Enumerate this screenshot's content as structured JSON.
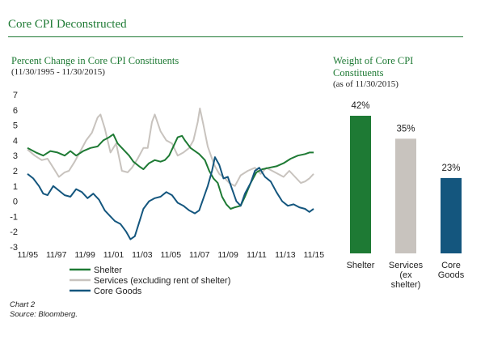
{
  "title": "Core CPI Deconstructed",
  "footer": {
    "chart_no": "Chart 2",
    "source": "Source: Bloomberg."
  },
  "colors": {
    "brand": "#1e7a34",
    "shelter": "#1e7a34",
    "services": "#c8c3be",
    "goods": "#14567e"
  },
  "chart_data": [
    {
      "type": "line",
      "title": "Percent Change in Core CPI Constituents",
      "subtitle": "(11/30/1995 - 11/30/2015)",
      "ylim": [
        -3,
        7
      ],
      "yticks": [
        -3,
        -2,
        -1,
        0,
        1,
        2,
        3,
        4,
        5,
        6,
        7
      ],
      "xlim": [
        1995.9,
        2015.9
      ],
      "xticks": [
        {
          "x": 1995.917,
          "label": "11/95"
        },
        {
          "x": 1997.917,
          "label": "11/97"
        },
        {
          "x": 1999.917,
          "label": "11/99"
        },
        {
          "x": 2001.917,
          "label": "11/01"
        },
        {
          "x": 2003.917,
          "label": "11/03"
        },
        {
          "x": 2005.917,
          "label": "11/05"
        },
        {
          "x": 2007.917,
          "label": "11/07"
        },
        {
          "x": 2009.917,
          "label": "11/09"
        },
        {
          "x": 2011.917,
          "label": "11/11"
        },
        {
          "x": 2013.917,
          "label": "11/13"
        },
        {
          "x": 2015.917,
          "label": "11/15"
        }
      ],
      "legend_position": "bottom-left",
      "series": [
        {
          "name": "Shelter",
          "color": "#1e7a34",
          "points": [
            [
              1995.9,
              3.5
            ],
            [
              1996.5,
              3.2
            ],
            [
              1997.0,
              3.0
            ],
            [
              1997.5,
              3.3
            ],
            [
              1998.0,
              3.2
            ],
            [
              1998.5,
              3.0
            ],
            [
              1998.9,
              3.3
            ],
            [
              1999.3,
              3.0
            ],
            [
              1999.8,
              3.3
            ],
            [
              2000.3,
              3.5
            ],
            [
              2000.8,
              3.6
            ],
            [
              2001.2,
              4.0
            ],
            [
              2001.6,
              4.2
            ],
            [
              2001.9,
              4.4
            ],
            [
              2002.2,
              3.8
            ],
            [
              2002.6,
              3.4
            ],
            [
              2003.0,
              3.0
            ],
            [
              2003.3,
              2.6
            ],
            [
              2003.7,
              2.3
            ],
            [
              2004.0,
              2.1
            ],
            [
              2004.4,
              2.5
            ],
            [
              2004.8,
              2.7
            ],
            [
              2005.2,
              2.6
            ],
            [
              2005.5,
              2.7
            ],
            [
              2005.8,
              3.0
            ],
            [
              2006.1,
              3.6
            ],
            [
              2006.4,
              4.2
            ],
            [
              2006.7,
              4.3
            ],
            [
              2006.9,
              4.0
            ],
            [
              2007.3,
              3.5
            ],
            [
              2007.6,
              3.3
            ],
            [
              2007.9,
              3.1
            ],
            [
              2008.3,
              2.7
            ],
            [
              2008.6,
              2.0
            ],
            [
              2008.9,
              1.5
            ],
            [
              2009.2,
              1.2
            ],
            [
              2009.5,
              0.3
            ],
            [
              2009.8,
              -0.2
            ],
            [
              2010.1,
              -0.5
            ],
            [
              2010.4,
              -0.4
            ],
            [
              2010.8,
              -0.3
            ],
            [
              2011.1,
              0.3
            ],
            [
              2011.5,
              1.2
            ],
            [
              2011.9,
              1.9
            ],
            [
              2012.3,
              2.1
            ],
            [
              2012.8,
              2.2
            ],
            [
              2013.3,
              2.3
            ],
            [
              2013.8,
              2.5
            ],
            [
              2014.3,
              2.8
            ],
            [
              2014.8,
              3.0
            ],
            [
              2015.3,
              3.1
            ],
            [
              2015.6,
              3.2
            ],
            [
              2015.9,
              3.2
            ]
          ]
        },
        {
          "name": "Services (excluding rent of shelter)",
          "color": "#c8c3be",
          "points": [
            [
              1995.9,
              3.4
            ],
            [
              1996.4,
              3.0
            ],
            [
              1996.9,
              2.7
            ],
            [
              1997.3,
              2.8
            ],
            [
              1997.7,
              2.2
            ],
            [
              1998.1,
              1.6
            ],
            [
              1998.5,
              1.9
            ],
            [
              1998.8,
              2.0
            ],
            [
              1999.2,
              2.6
            ],
            [
              1999.6,
              3.3
            ],
            [
              2000.0,
              4.0
            ],
            [
              2000.4,
              4.5
            ],
            [
              2000.8,
              5.5
            ],
            [
              2001.0,
              5.7
            ],
            [
              2001.3,
              4.8
            ],
            [
              2001.7,
              3.2
            ],
            [
              2002.1,
              3.8
            ],
            [
              2002.5,
              2.0
            ],
            [
              2002.9,
              1.9
            ],
            [
              2003.2,
              2.2
            ],
            [
              2003.6,
              2.8
            ],
            [
              2004.0,
              3.5
            ],
            [
              2004.3,
              3.5
            ],
            [
              2004.6,
              5.2
            ],
            [
              2004.8,
              5.7
            ],
            [
              2005.2,
              4.6
            ],
            [
              2005.6,
              4.0
            ],
            [
              2006.0,
              3.8
            ],
            [
              2006.4,
              3.0
            ],
            [
              2006.8,
              3.2
            ],
            [
              2007.2,
              3.5
            ],
            [
              2007.5,
              4.0
            ],
            [
              2007.8,
              5.2
            ],
            [
              2007.95,
              6.1
            ],
            [
              2008.2,
              5.0
            ],
            [
              2008.5,
              3.6
            ],
            [
              2008.8,
              2.8
            ],
            [
              2009.0,
              2.3
            ],
            [
              2009.3,
              1.8
            ],
            [
              2009.7,
              1.5
            ],
            [
              2010.0,
              1.2
            ],
            [
              2010.4,
              1.0
            ],
            [
              2010.8,
              1.7
            ],
            [
              2011.3,
              2.0
            ],
            [
              2011.8,
              2.2
            ],
            [
              2012.2,
              1.8
            ],
            [
              2012.6,
              2.2
            ],
            [
              2013.0,
              2.0
            ],
            [
              2013.4,
              1.8
            ],
            [
              2013.8,
              1.6
            ],
            [
              2014.2,
              2.0
            ],
            [
              2014.6,
              1.6
            ],
            [
              2015.0,
              1.2
            ],
            [
              2015.3,
              1.3
            ],
            [
              2015.6,
              1.5
            ],
            [
              2015.9,
              1.8
            ]
          ]
        },
        {
          "name": "Core Goods",
          "color": "#14567e",
          "points": [
            [
              1995.9,
              1.8
            ],
            [
              1996.3,
              1.5
            ],
            [
              1996.7,
              1.0
            ],
            [
              1997.0,
              0.5
            ],
            [
              1997.3,
              0.4
            ],
            [
              1997.7,
              1.0
            ],
            [
              1998.1,
              0.7
            ],
            [
              1998.5,
              0.4
            ],
            [
              1998.9,
              0.3
            ],
            [
              1999.3,
              0.8
            ],
            [
              1999.7,
              0.6
            ],
            [
              2000.1,
              0.2
            ],
            [
              2000.5,
              0.5
            ],
            [
              2000.9,
              0.1
            ],
            [
              2001.3,
              -0.6
            ],
            [
              2001.7,
              -1.0
            ],
            [
              2002.0,
              -1.3
            ],
            [
              2002.4,
              -1.5
            ],
            [
              2002.8,
              -2.0
            ],
            [
              2003.1,
              -2.5
            ],
            [
              2003.4,
              -2.3
            ],
            [
              2003.7,
              -1.4
            ],
            [
              2004.0,
              -0.5
            ],
            [
              2004.4,
              0.0
            ],
            [
              2004.8,
              0.2
            ],
            [
              2005.2,
              0.3
            ],
            [
              2005.6,
              0.6
            ],
            [
              2006.0,
              0.4
            ],
            [
              2006.4,
              -0.1
            ],
            [
              2006.8,
              -0.3
            ],
            [
              2007.2,
              -0.6
            ],
            [
              2007.6,
              -0.8
            ],
            [
              2007.9,
              -0.6
            ],
            [
              2008.2,
              0.2
            ],
            [
              2008.5,
              1.0
            ],
            [
              2008.8,
              2.0
            ],
            [
              2009.0,
              2.9
            ],
            [
              2009.3,
              2.4
            ],
            [
              2009.6,
              1.5
            ],
            [
              2009.9,
              1.6
            ],
            [
              2010.2,
              0.8
            ],
            [
              2010.5,
              0.0
            ],
            [
              2010.8,
              -0.3
            ],
            [
              2011.1,
              0.5
            ],
            [
              2011.5,
              1.2
            ],
            [
              2011.8,
              2.0
            ],
            [
              2012.1,
              2.2
            ],
            [
              2012.5,
              1.6
            ],
            [
              2012.9,
              1.3
            ],
            [
              2013.3,
              0.6
            ],
            [
              2013.7,
              0.0
            ],
            [
              2014.1,
              -0.3
            ],
            [
              2014.5,
              -0.2
            ],
            [
              2014.9,
              -0.4
            ],
            [
              2015.3,
              -0.5
            ],
            [
              2015.6,
              -0.7
            ],
            [
              2015.9,
              -0.5
            ]
          ]
        }
      ]
    },
    {
      "type": "bar",
      "title": "Weight of Core CPI Constituents",
      "subtitle": "(as of 11/30/2015)",
      "ylim": [
        0,
        50
      ],
      "bars": [
        {
          "category": [
            "Shelter"
          ],
          "value": 42,
          "label": "42%",
          "color": "#1e7a34"
        },
        {
          "category": [
            "Services",
            "(ex",
            "shelter)"
          ],
          "value": 35,
          "label": "35%",
          "color": "#c8c3be"
        },
        {
          "category": [
            "Core",
            "Goods"
          ],
          "value": 23,
          "label": "23%",
          "color": "#14567e"
        }
      ]
    }
  ]
}
